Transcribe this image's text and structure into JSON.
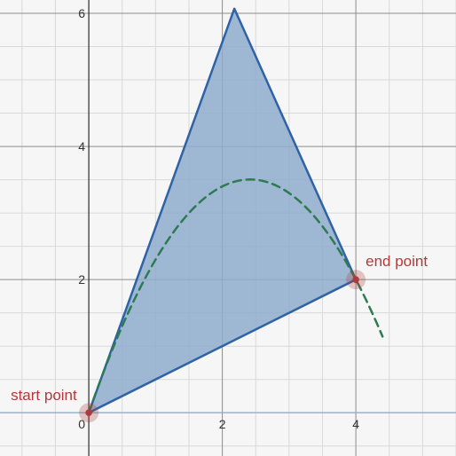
{
  "chart_data": {
    "type": "line",
    "title": "",
    "xlabel": "",
    "ylabel": "",
    "xlim": [
      -1.33,
      5.5
    ],
    "ylim": [
      -0.65,
      6.2
    ],
    "x_ticks": [
      0,
      2,
      4
    ],
    "y_ticks": [
      2,
      4,
      6
    ],
    "origin_label": "0",
    "grid": true,
    "minor_grid_step": 0.5,
    "major_grid_step": 2,
    "series": [
      {
        "kind": "filled-polygon",
        "points": [
          [
            0,
            0
          ],
          [
            2.18,
            6.07
          ],
          [
            4,
            2
          ]
        ],
        "fill_color": "#8eaccc",
        "stroke_color": "#2f62a6"
      },
      {
        "kind": "dashed-curve",
        "function": "y = 2.9*x - 0.6*x^2",
        "x_range": [
          0,
          4.4
        ],
        "stroke_color": "#2e7a52"
      }
    ],
    "annotations": [
      {
        "label": "start point",
        "x": 0,
        "y": 0,
        "color": "#b03a3a"
      },
      {
        "label": "end point",
        "x": 4,
        "y": 2,
        "color": "#b03a3a"
      }
    ]
  }
}
